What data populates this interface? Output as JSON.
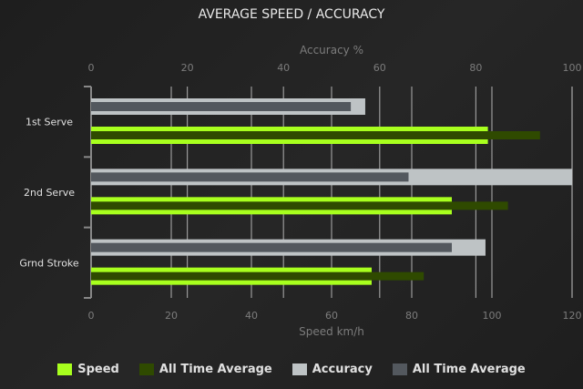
{
  "chart_data": {
    "type": "bar",
    "orientation": "horizontal",
    "title": "AVERAGE SPEED / ACCURACY",
    "categories": [
      "1st Serve",
      "2nd Serve",
      "Grnd Stroke"
    ],
    "x_bottom": {
      "label": "Speed km/h",
      "range": [
        0,
        120
      ],
      "ticks": [
        0,
        20,
        40,
        60,
        80,
        100,
        120
      ]
    },
    "x_top": {
      "label": "Accuracy %",
      "range": [
        0,
        100
      ],
      "ticks": [
        0,
        20,
        40,
        60,
        80,
        100
      ]
    },
    "grid": true,
    "legend_position": "bottom",
    "series": [
      {
        "name": "Speed",
        "axis": "speed",
        "color": "#a8ff1e",
        "values": [
          99,
          90,
          70
        ]
      },
      {
        "name": "All Time Average",
        "axis": "speed",
        "color": "#2f4a00",
        "values": [
          112,
          104,
          83
        ]
      },
      {
        "name": "Accuracy",
        "axis": "accuracy",
        "color": "#bec3c5",
        "values": [
          57,
          100,
          82
        ]
      },
      {
        "name": "All Time Average",
        "axis": "accuracy",
        "color": "#53585e",
        "values": [
          54,
          66,
          75
        ]
      }
    ]
  }
}
